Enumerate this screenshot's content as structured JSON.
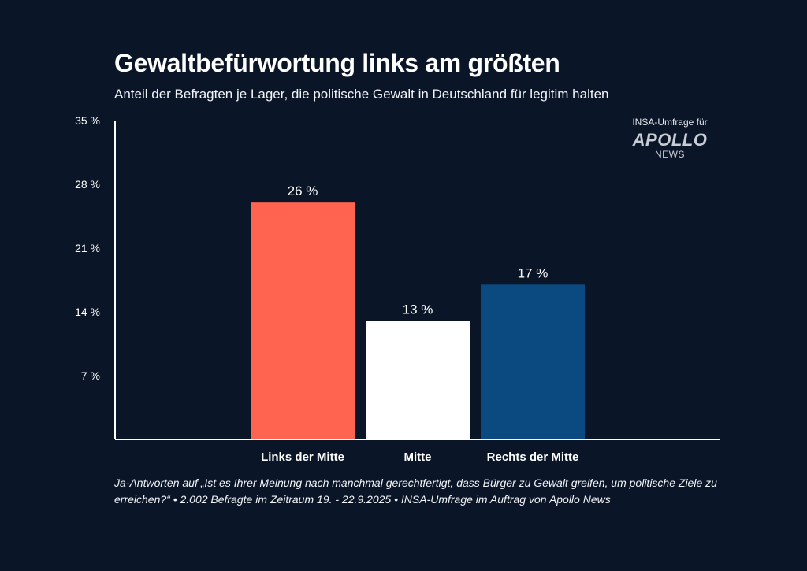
{
  "header": {
    "title": "Gewaltbefürwortung links am größten",
    "subtitle": "Anteil der Befragten je Lager, die politische Gewalt in Deutschland für legitim halten"
  },
  "branding": {
    "pre": "INSA-Umfrage für",
    "logo": "APOLLO",
    "logo_sub": "NEWS"
  },
  "footnote": "Ja-Antworten auf „Ist es Ihrer Meinung nach manchmal gerechtfertigt, dass Bürger zu Gewalt greifen, um politische Ziele zu erreichen?“ • 2.002 Befragte im Zeitraum 19. - 22.9.2025 • INSA-Umfrage im Auftrag von Apollo News",
  "colors": {
    "background": "#0a1628",
    "text": "#ffffff",
    "axis": "#ffffff"
  },
  "chart_data": {
    "type": "bar",
    "title": "Gewaltbefürwortung links am größten",
    "subtitle": "Anteil der Befragten je Lager, die politische Gewalt in Deutschland für legitim halten",
    "categories": [
      "Links der Mitte",
      "Mitte",
      "Rechts der Mitte"
    ],
    "values": [
      26,
      13,
      17
    ],
    "value_labels": [
      "26 %",
      "13 %",
      "17 %"
    ],
    "bar_colors": [
      "#ff6450",
      "#ffffff",
      "#0b4a80"
    ],
    "yticks": [
      7,
      14,
      21,
      28,
      35
    ],
    "ytick_labels": [
      "7 %",
      "14 %",
      "21 %",
      "28 %",
      "35 %"
    ],
    "ylim": [
      0,
      35
    ],
    "xlabel": "",
    "ylabel": "",
    "grid": false,
    "legend": "none"
  }
}
